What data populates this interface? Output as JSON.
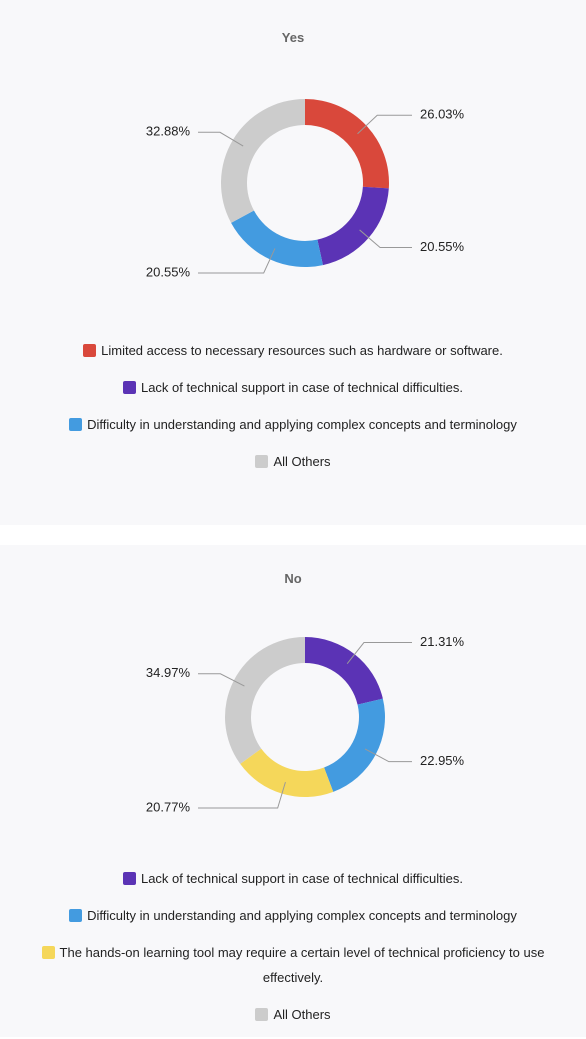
{
  "chart_data": [
    {
      "type": "pie",
      "title": "Yes",
      "categories": [
        "Limited access to necessary resources such as hardware or software.",
        "Lack of technical support in case of technical difficulties.",
        "Difficulty in understanding and applying complex concepts and terminology",
        "All Others"
      ],
      "values": [
        26.03,
        20.55,
        20.55,
        32.88
      ],
      "value_labels": [
        "26.03%",
        "20.55%",
        "20.55%",
        "32.88%"
      ],
      "colors": [
        "#d9483b",
        "#5b33b5",
        "#439be0",
        "#cccccc"
      ]
    },
    {
      "type": "pie",
      "title": "No",
      "categories": [
        "Lack of technical support in case of technical difficulties.",
        "Difficulty in understanding and applying complex concepts and terminology",
        "The hands-on learning tool may require a certain level of technical proficiency to use effectively.",
        "All Others"
      ],
      "values": [
        21.31,
        22.95,
        20.77,
        34.97
      ],
      "value_labels": [
        "21.31%",
        "22.95%",
        "20.77%",
        "34.97%"
      ],
      "colors": [
        "#5b33b5",
        "#439be0",
        "#f5d75a",
        "#cccccc"
      ]
    }
  ]
}
